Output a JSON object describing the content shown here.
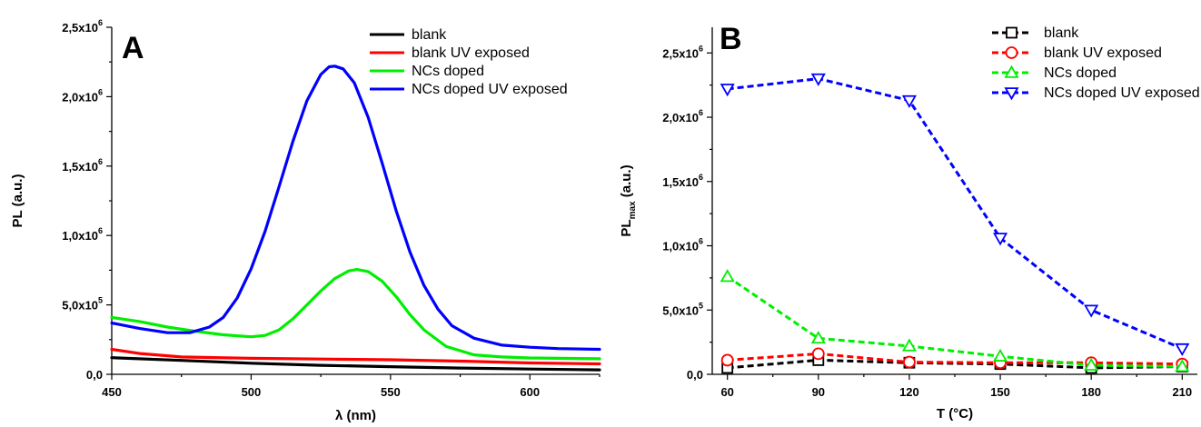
{
  "chart_data": [
    {
      "type": "line",
      "panel_label": "A",
      "xlabel": "λ (nm)",
      "ylabel": "PL (a.u.)",
      "xlim": [
        450,
        625
      ],
      "ylim": [
        0,
        2500000
      ],
      "x_ticks": [
        450,
        500,
        550,
        600
      ],
      "x_tick_labels": [
        "450",
        "500",
        "550",
        "600"
      ],
      "y_ticks": [
        0,
        500000,
        1000000,
        1500000,
        2000000,
        2500000
      ],
      "y_tick_labels": [
        {
          "mantissa": "0,0",
          "exp": ""
        },
        {
          "mantissa": "5,0x10",
          "exp": "5"
        },
        {
          "mantissa": "1,0x10",
          "exp": "6"
        },
        {
          "mantissa": "1,5x10",
          "exp": "6"
        },
        {
          "mantissa": "2,0x10",
          "exp": "6"
        },
        {
          "mantissa": "2,5x10",
          "exp": "6"
        }
      ],
      "legend_position": "top-right",
      "series": [
        {
          "name": "blank",
          "color": "#000000",
          "x": [
            450,
            475,
            500,
            525,
            550,
            575,
            600,
            625
          ],
          "y": [
            120000,
            100000,
            80000,
            65000,
            55000,
            45000,
            38000,
            32000
          ]
        },
        {
          "name": "blank UV exposed",
          "color": "#ff0000",
          "x": [
            450,
            460,
            475,
            500,
            525,
            550,
            575,
            600,
            625
          ],
          "y": [
            180000,
            150000,
            125000,
            115000,
            110000,
            105000,
            95000,
            82000,
            75000
          ]
        },
        {
          "name": "NCs doped",
          "color": "#00ee00",
          "x": [
            450,
            460,
            470,
            480,
            490,
            500,
            505,
            510,
            515,
            520,
            525,
            530,
            535,
            538,
            542,
            547,
            552,
            557,
            562,
            570,
            580,
            590,
            600,
            610,
            625
          ],
          "y": [
            410000,
            380000,
            340000,
            310000,
            285000,
            270000,
            280000,
            320000,
            400000,
            500000,
            600000,
            690000,
            745000,
            755000,
            740000,
            670000,
            560000,
            430000,
            320000,
            200000,
            140000,
            125000,
            118000,
            115000,
            112000
          ]
        },
        {
          "name": "NCs doped UV exposed",
          "color": "#0000ff",
          "x": [
            450,
            460,
            470,
            478,
            485,
            490,
            495,
            500,
            505,
            510,
            515,
            520,
            525,
            528,
            530,
            533,
            537,
            542,
            547,
            552,
            557,
            562,
            567,
            572,
            580,
            590,
            600,
            610,
            625
          ],
          "y": [
            370000,
            330000,
            300000,
            300000,
            340000,
            410000,
            550000,
            760000,
            1030000,
            1350000,
            1680000,
            1970000,
            2160000,
            2215000,
            2220000,
            2200000,
            2100000,
            1850000,
            1520000,
            1180000,
            880000,
            640000,
            470000,
            350000,
            260000,
            210000,
            195000,
            185000,
            180000
          ]
        }
      ]
    },
    {
      "type": "line",
      "panel_label": "B",
      "xlabel": "T (°C)",
      "ylabel_main": "PL",
      "ylabel_sub": "max",
      "ylabel_suffix": " (a.u.)",
      "xlim": [
        55,
        215
      ],
      "ylim": [
        0,
        2700000
      ],
      "x_ticks": [
        60,
        90,
        120,
        150,
        180,
        210
      ],
      "x_tick_labels": [
        "60",
        "90",
        "120",
        "150",
        "180",
        "210"
      ],
      "y_ticks": [
        0,
        500000,
        1000000,
        1500000,
        2000000,
        2500000
      ],
      "y_tick_labels": [
        {
          "mantissa": "0,0",
          "exp": ""
        },
        {
          "mantissa": "5,0x10",
          "exp": "5"
        },
        {
          "mantissa": "1,0x10",
          "exp": "6"
        },
        {
          "mantissa": "1,5x10",
          "exp": "6"
        },
        {
          "mantissa": "2,0x10",
          "exp": "6"
        },
        {
          "mantissa": "2,5x10",
          "exp": "6"
        }
      ],
      "legend_position": "top-right",
      "series": [
        {
          "name": "blank",
          "color": "#000000",
          "marker": "square",
          "x": [
            60,
            90,
            120,
            150,
            180,
            210
          ],
          "y": [
            50000,
            110000,
            90000,
            80000,
            50000,
            60000
          ]
        },
        {
          "name": "blank UV exposed",
          "color": "#ff0000",
          "marker": "circle",
          "x": [
            60,
            90,
            120,
            150,
            180,
            210
          ],
          "y": [
            110000,
            160000,
            95000,
            90000,
            90000,
            80000
          ]
        },
        {
          "name": "NCs doped",
          "color": "#00ee00",
          "marker": "triangle-up",
          "x": [
            60,
            90,
            120,
            150,
            180,
            210
          ],
          "y": [
            760000,
            280000,
            220000,
            140000,
            70000,
            60000
          ]
        },
        {
          "name": "NCs doped UV exposed",
          "color": "#0000ff",
          "marker": "triangle-down",
          "x": [
            60,
            90,
            120,
            150,
            180,
            210
          ],
          "y": [
            2220000,
            2300000,
            2130000,
            1060000,
            500000,
            200000
          ]
        }
      ]
    }
  ]
}
